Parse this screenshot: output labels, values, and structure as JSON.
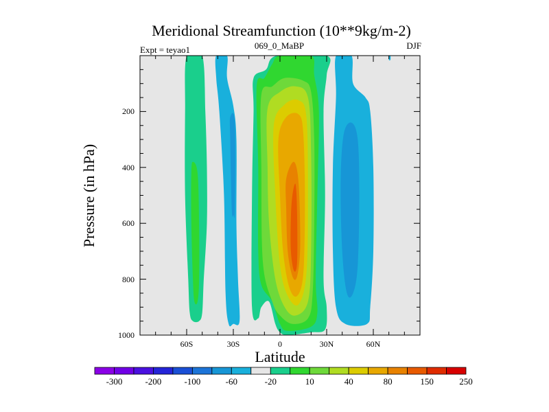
{
  "chart_data": {
    "type": "filled-contour",
    "title": "Meridional Streamfunction (10**9kg/m-2)",
    "subtitle_left": "Expt = teyao1",
    "subtitle_center": "069_0_MaBP",
    "subtitle_right": "DJF",
    "xlabel": "Latitude",
    "ylabel": "Pressure (in hPa)",
    "xlim": [
      -90,
      90
    ],
    "ylim": [
      1000,
      0
    ],
    "x_ticks": [
      {
        "value": -60,
        "label": "60S"
      },
      {
        "value": -30,
        "label": "30S"
      },
      {
        "value": 0,
        "label": "0"
      },
      {
        "value": 30,
        "label": "30N"
      },
      {
        "value": 60,
        "label": "60N"
      }
    ],
    "y_ticks": [
      {
        "value": 200,
        "label": "200"
      },
      {
        "value": 400,
        "label": "400"
      },
      {
        "value": 600,
        "label": "600"
      },
      {
        "value": 800,
        "label": "800"
      },
      {
        "value": 1000,
        "label": "1000"
      }
    ],
    "background_color": "#e6e6e6",
    "colorbar": {
      "colors": [
        "#8a00e6",
        "#7000e6",
        "#4a10e0",
        "#2424d8",
        "#1a4fd6",
        "#1c74d8",
        "#1796d6",
        "#19b0dc",
        "#e6e6e6",
        "#1acf8c",
        "#30d730",
        "#6ed93a",
        "#b0dc22",
        "#dccc00",
        "#e8a800",
        "#e88200",
        "#e85a00",
        "#e02c00",
        "#d80000"
      ],
      "labels": [
        "-300",
        "-200",
        "-100",
        "-60",
        "-20",
        "10",
        "40",
        "80",
        "150",
        "250"
      ]
    },
    "contours": [
      {
        "name": "cell-sh-polar",
        "level": 10,
        "color": "#1acf8c",
        "outline": [
          [
            -60,
            0
          ],
          [
            -50,
            0
          ],
          [
            -48,
            200
          ],
          [
            -47,
            400
          ],
          [
            -47,
            600
          ],
          [
            -49,
            800
          ],
          [
            -50,
            920
          ],
          [
            -52,
            950
          ],
          [
            -56,
            950
          ],
          [
            -58,
            920
          ],
          [
            -59,
            800
          ],
          [
            -61,
            500
          ],
          [
            -61,
            200
          ]
        ]
      },
      {
        "name": "cell-sh-polar-core",
        "level": 40,
        "color": "#30d730",
        "outline": [
          [
            -56,
            380
          ],
          [
            -53,
            420
          ],
          [
            -52,
            600
          ],
          [
            -52,
            800
          ],
          [
            -53,
            880
          ],
          [
            -55,
            880
          ],
          [
            -56,
            800
          ],
          [
            -57,
            600
          ],
          [
            -57,
            420
          ]
        ]
      },
      {
        "name": "cell-sh-ferrel",
        "level": -20,
        "color": "#19b0dc",
        "outline": [
          [
            -41,
            0
          ],
          [
            -34,
            0
          ],
          [
            -34,
            80
          ],
          [
            -30,
            180
          ],
          [
            -28,
            300
          ],
          [
            -28,
            600
          ],
          [
            -27,
            800
          ],
          [
            -26,
            950
          ],
          [
            -30,
            960
          ],
          [
            -33,
            960
          ],
          [
            -35,
            850
          ],
          [
            -36,
            500
          ],
          [
            -39,
            200
          ],
          [
            -41,
            80
          ]
        ]
      },
      {
        "name": "cell-sh-ferrel-core",
        "level": -60,
        "color": "#1796d6",
        "outline": [
          [
            -32,
            220
          ],
          [
            -29,
            240
          ],
          [
            -29,
            550
          ],
          [
            -30,
            570
          ],
          [
            -31,
            550
          ],
          [
            -32,
            300
          ]
        ]
      },
      {
        "name": "hadley-10",
        "level": 10,
        "color": "#1acf8c",
        "outline": [
          [
            -17,
            80
          ],
          [
            -9,
            50
          ],
          [
            -2,
            0
          ],
          [
            30,
            0
          ],
          [
            30,
            70
          ],
          [
            28,
            200
          ],
          [
            29,
            500
          ],
          [
            28,
            800
          ],
          [
            30,
            900
          ],
          [
            29,
            980
          ],
          [
            20,
            990
          ],
          [
            5,
            1000
          ],
          [
            0,
            990
          ],
          [
            -3,
            960
          ],
          [
            -7,
            880
          ],
          [
            -12,
            900
          ],
          [
            -14,
            940
          ],
          [
            -18,
            900
          ],
          [
            -18,
            500
          ],
          [
            -17,
            200
          ]
        ]
      },
      {
        "name": "hadley-40",
        "level": 40,
        "color": "#30d730",
        "outline": [
          [
            -15,
            110
          ],
          [
            -10,
            80
          ],
          [
            -5,
            30
          ],
          [
            0,
            0
          ],
          [
            20,
            0
          ],
          [
            22,
            70
          ],
          [
            25,
            200
          ],
          [
            24,
            500
          ],
          [
            23,
            800
          ],
          [
            24,
            920
          ],
          [
            20,
            970
          ],
          [
            5,
            985
          ],
          [
            0,
            960
          ],
          [
            -5,
            880
          ],
          [
            -12,
            820
          ],
          [
            -14,
            700
          ],
          [
            -14,
            400
          ]
        ]
      },
      {
        "name": "hadley-80",
        "level": 80,
        "color": "#6ed93a",
        "outline": [
          [
            -12,
            140
          ],
          [
            -5,
            110
          ],
          [
            3,
            80
          ],
          [
            15,
            90
          ],
          [
            20,
            130
          ],
          [
            22,
            300
          ],
          [
            22,
            600
          ],
          [
            21,
            850
          ],
          [
            18,
            940
          ],
          [
            8,
            960
          ],
          [
            0,
            930
          ],
          [
            -5,
            880
          ],
          [
            -11,
            740
          ],
          [
            -12,
            400
          ]
        ]
      },
      {
        "name": "hadley-120",
        "level": 120,
        "color": "#b0dc22",
        "outline": [
          [
            -8,
            190
          ],
          [
            0,
            130
          ],
          [
            10,
            110
          ],
          [
            18,
            150
          ],
          [
            20,
            350
          ],
          [
            20,
            700
          ],
          [
            18,
            880
          ],
          [
            10,
            930
          ],
          [
            3,
            900
          ],
          [
            -3,
            800
          ],
          [
            -7,
            600
          ],
          [
            -8,
            400
          ]
        ]
      },
      {
        "name": "hadley-150",
        "level": 150,
        "color": "#dccc00",
        "outline": [
          [
            -4,
            250
          ],
          [
            3,
            175
          ],
          [
            12,
            160
          ],
          [
            17,
            220
          ],
          [
            18,
            500
          ],
          [
            17,
            780
          ],
          [
            12,
            890
          ],
          [
            5,
            860
          ],
          [
            0,
            750
          ],
          [
            -3,
            500
          ]
        ]
      },
      {
        "name": "hadley-200",
        "level": 200,
        "color": "#e8a800",
        "outline": [
          [
            -1,
            300
          ],
          [
            4,
            220
          ],
          [
            12,
            210
          ],
          [
            15,
            280
          ],
          [
            16,
            520
          ],
          [
            15,
            780
          ],
          [
            11,
            860
          ],
          [
            6,
            830
          ],
          [
            2,
            700
          ],
          [
            0,
            500
          ]
        ]
      },
      {
        "name": "hadley-250",
        "level": 250,
        "color": "#e88200",
        "outline": [
          [
            4,
            440
          ],
          [
            9,
            380
          ],
          [
            12,
            460
          ],
          [
            13,
            680
          ],
          [
            11,
            790
          ],
          [
            8,
            790
          ],
          [
            5,
            700
          ],
          [
            4,
            550
          ]
        ]
      },
      {
        "name": "hadley-300",
        "level": 300,
        "color": "#e85a00",
        "outline": [
          [
            8,
            500
          ],
          [
            10,
            460
          ],
          [
            11,
            560
          ],
          [
            11,
            740
          ],
          [
            9,
            770
          ],
          [
            7,
            700
          ],
          [
            7,
            580
          ]
        ]
      },
      {
        "name": "cell-nh-ferrel",
        "level": -20,
        "color": "#19b0dc",
        "outline": [
          [
            36,
            0
          ],
          [
            46,
            0
          ],
          [
            47,
            100
          ],
          [
            55,
            150
          ],
          [
            58,
            200
          ],
          [
            60,
            400
          ],
          [
            60,
            700
          ],
          [
            58,
            900
          ],
          [
            56,
            960
          ],
          [
            42,
            960
          ],
          [
            36,
            900
          ],
          [
            34,
            700
          ],
          [
            34,
            400
          ],
          [
            36,
            150
          ]
        ]
      },
      {
        "name": "cell-nh-ferrel-core",
        "level": -60,
        "color": "#1796d6",
        "outline": [
          [
            41,
            280
          ],
          [
            46,
            240
          ],
          [
            50,
            300
          ],
          [
            51,
            500
          ],
          [
            50,
            750
          ],
          [
            47,
            850
          ],
          [
            43,
            850
          ],
          [
            40,
            700
          ],
          [
            39,
            450
          ]
        ]
      },
      {
        "name": "cell-nh-speck",
        "level": -20,
        "color": "#19b0dc",
        "outline": [
          [
            70,
            0
          ],
          [
            71,
            0
          ],
          [
            71,
            15
          ],
          [
            70,
            15
          ]
        ]
      }
    ]
  }
}
